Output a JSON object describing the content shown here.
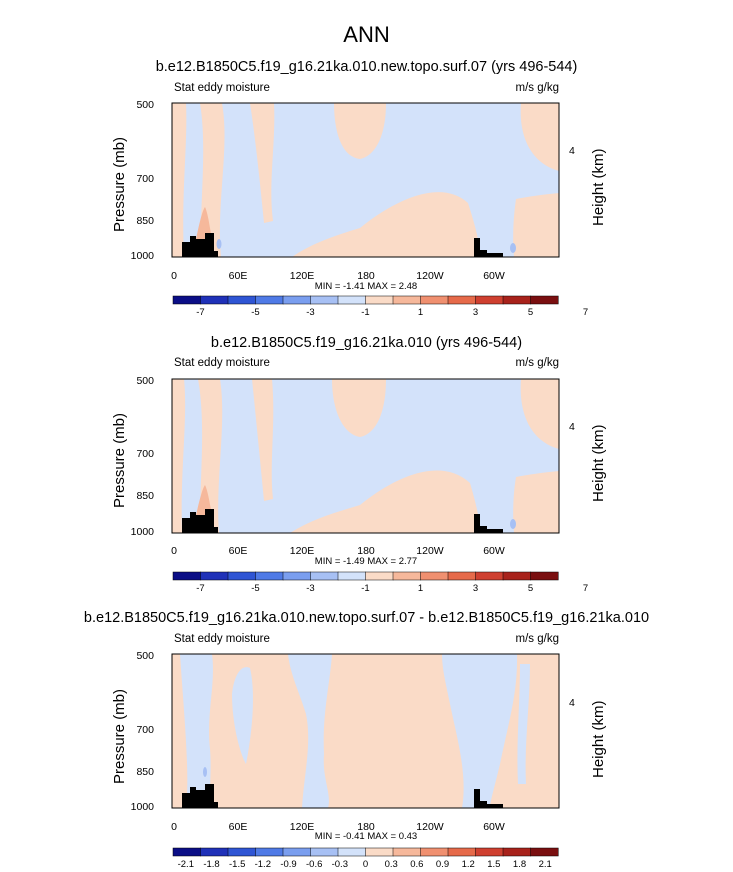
{
  "title": "ANN",
  "colors": {
    "cb_a": [
      "#0b0e86",
      "#1f31b8",
      "#2f55d4",
      "#4f7ae6",
      "#7a9eef",
      "#a7c0f4",
      "#d3e2fa",
      "#fadbc7",
      "#f6b89b",
      "#f09070",
      "#e66a4a",
      "#cf4030",
      "#a8221b",
      "#7a0f10"
    ],
    "light_blue": "#d3e2fa",
    "light_orange": "#fadbc7",
    "mid_orange": "#f6b89b",
    "mid_blue": "#a7c0f4",
    "land": "#000000"
  },
  "chart_data": [
    {
      "type": "contour",
      "title": "b.e12.B1850C5.f19_g16.21ka.010.new.topo.surf.07 (yrs 496-544)",
      "left_label": "Stat eddy moisture",
      "units": "m/s g/kg",
      "ylabel": "Pressure (mb)",
      "ylabel_right": "Height (km)",
      "yticks": [
        "500",
        "700",
        "850",
        "1000"
      ],
      "yticks_right": [
        "4"
      ],
      "xticks": [
        "0",
        "60E",
        "120E",
        "180",
        "120W",
        "60W"
      ],
      "minmax": "MIN =  -1.41  MAX =   2.48",
      "colorbar_labels": [
        "-7",
        "-5",
        "-3",
        "-1",
        "1",
        "3",
        "5",
        "7"
      ]
    },
    {
      "type": "contour",
      "title": "b.e12.B1850C5.f19_g16.21ka.010 (yrs 496-544)",
      "left_label": "Stat eddy moisture",
      "units": "m/s g/kg",
      "ylabel": "Pressure (mb)",
      "ylabel_right": "Height (km)",
      "yticks": [
        "500",
        "700",
        "850",
        "1000"
      ],
      "yticks_right": [
        "4"
      ],
      "xticks": [
        "0",
        "60E",
        "120E",
        "180",
        "120W",
        "60W"
      ],
      "minmax": "MIN =  -1.49  MAX =   2.77",
      "colorbar_labels": [
        "-7",
        "-5",
        "-3",
        "-1",
        "1",
        "3",
        "5",
        "7"
      ]
    },
    {
      "type": "contour",
      "title": "b.e12.B1850C5.f19_g16.21ka.010.new.topo.surf.07 - b.e12.B1850C5.f19_g16.21ka.010",
      "left_label": "Stat eddy moisture",
      "units": "m/s g/kg",
      "ylabel": "Pressure (mb)",
      "ylabel_right": "Height (km)",
      "yticks": [
        "500",
        "700",
        "850",
        "1000"
      ],
      "yticks_right": [
        "4"
      ],
      "xticks": [
        "0",
        "60E",
        "120E",
        "180",
        "120W",
        "60W"
      ],
      "minmax": "MIN =  -0.41  MAX =   0.43",
      "colorbar_labels": [
        "-2.1",
        "-1.8",
        "-1.5",
        "-1.2",
        "-0.9",
        "-0.6",
        "-0.3",
        "0",
        "0.3",
        "0.6",
        "0.9",
        "1.2",
        "1.5",
        "1.8",
        "2.1"
      ]
    }
  ]
}
